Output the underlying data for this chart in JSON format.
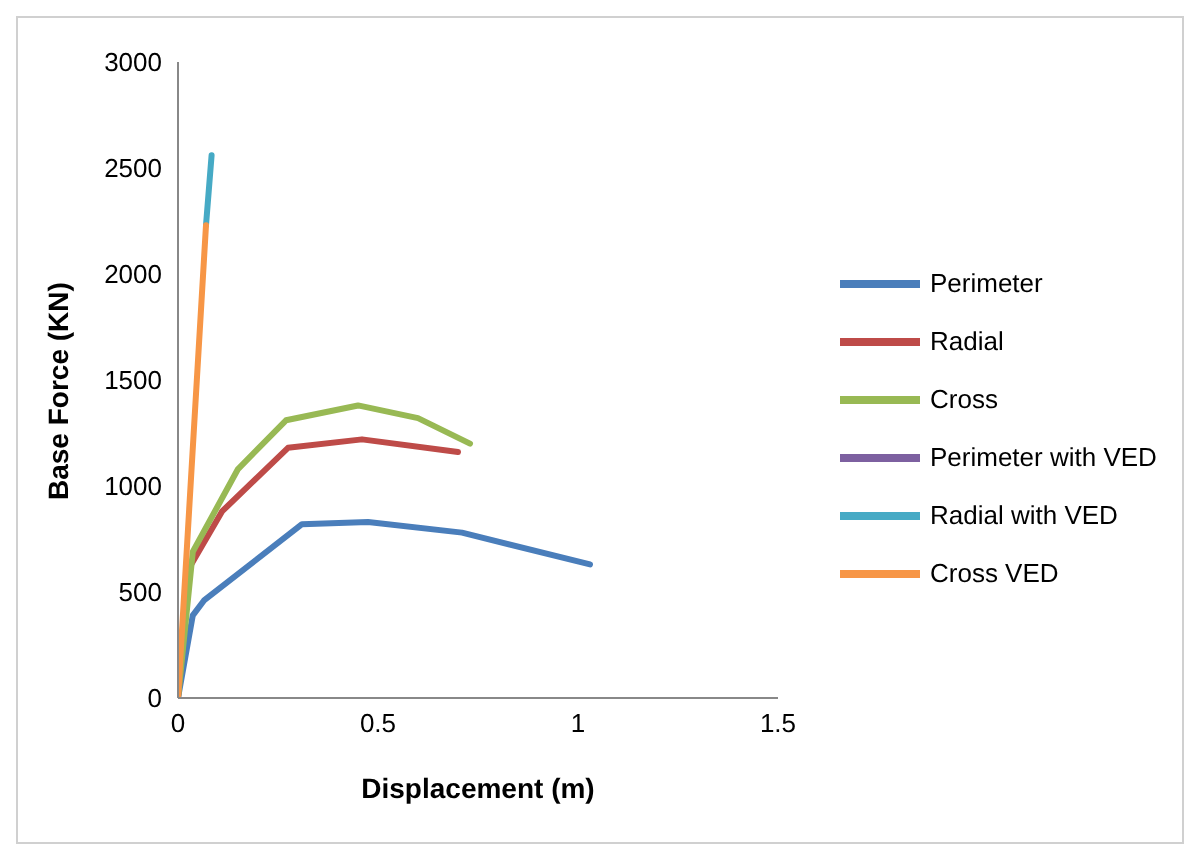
{
  "chart_data": {
    "type": "line",
    "xlabel": "Displacement (m)",
    "ylabel": "Base Force (KN)",
    "xlim": [
      0,
      1.5
    ],
    "xticks": [
      0,
      0.5,
      1,
      1.5
    ],
    "ylim": [
      0,
      3000
    ],
    "yticks": [
      0,
      500,
      1000,
      1500,
      2000,
      2500,
      3000
    ],
    "grid": false,
    "legend": "right",
    "marker": "none",
    "line_style": "solid",
    "series": [
      {
        "name": "Perimeter",
        "color": "#4a7ebb",
        "x": [
          0,
          0.037,
          0.065,
          0.31,
          0.475,
          0.71,
          1.03
        ],
        "values": [
          0,
          390,
          460,
          820,
          830,
          780,
          630
        ]
      },
      {
        "name": "Radial",
        "color": "#be4b48",
        "x": [
          0,
          0.03,
          0.11,
          0.275,
          0.46,
          0.7
        ],
        "values": [
          0,
          620,
          880,
          1180,
          1220,
          1160
        ]
      },
      {
        "name": "Cross",
        "color": "#98b954",
        "x": [
          0,
          0.037,
          0.15,
          0.27,
          0.45,
          0.6,
          0.73
        ],
        "values": [
          0,
          690,
          1080,
          1310,
          1380,
          1320,
          1200
        ]
      },
      {
        "name": "Perimeter with VED",
        "color": "#7d60a0"
      },
      {
        "name": "Radial with VED",
        "color": "#46aac5",
        "x": [
          0.07,
          0.084
        ],
        "values": [
          2230,
          2560
        ]
      },
      {
        "name": "Cross VED",
        "color": "#f79646",
        "x": [
          0,
          0.07
        ],
        "values": [
          0,
          2230
        ]
      }
    ]
  }
}
